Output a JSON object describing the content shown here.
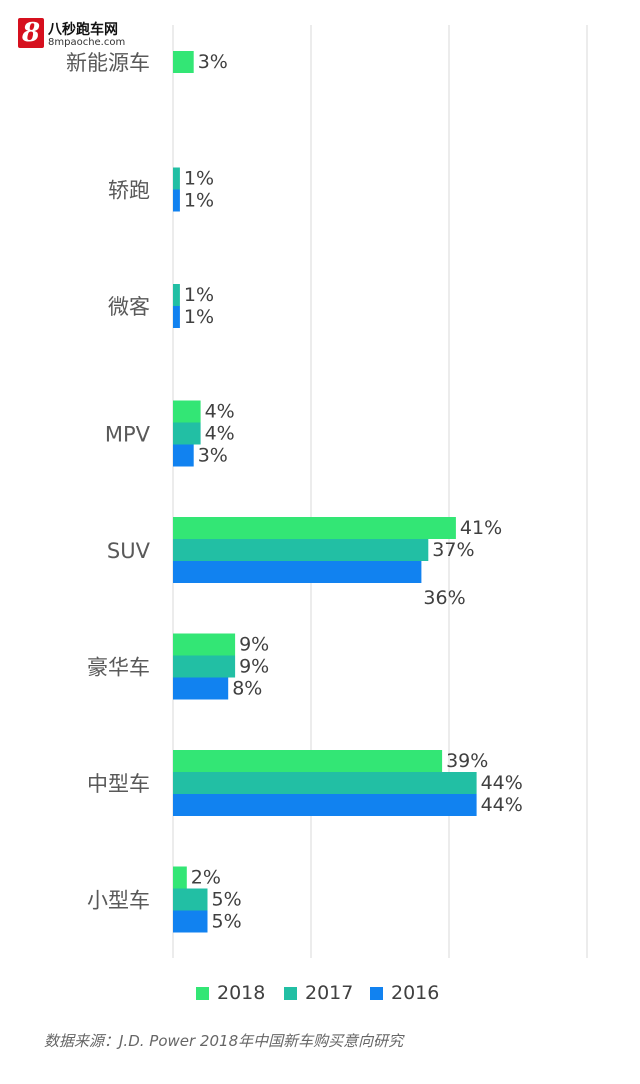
{
  "brand": {
    "logo_char": "8",
    "name": "八秒跑车网",
    "url": "8mpaoche.com"
  },
  "chart_data": {
    "type": "bar",
    "orientation": "horizontal",
    "categories": [
      "新能源车",
      "轿跑",
      "微客",
      "MPV",
      "SUV",
      "豪华车",
      "中型车",
      "小型车"
    ],
    "series": [
      {
        "name": "2018",
        "color": "#33e675",
        "values": [
          3,
          null,
          null,
          4,
          41,
          9,
          39,
          2
        ]
      },
      {
        "name": "2017",
        "color": "#22bfa4",
        "values": [
          null,
          1,
          1,
          4,
          37,
          9,
          44,
          5
        ]
      },
      {
        "name": "2016",
        "color": "#1182f0",
        "values": [
          null,
          1,
          1,
          3,
          36,
          8,
          44,
          5
        ]
      }
    ],
    "value_format": "{v}%",
    "xlim": [
      0,
      60
    ],
    "grid": true,
    "legend_position": "bottom",
    "title": "",
    "xlabel": "",
    "ylabel": ""
  },
  "source": "数据来源：J.D. Power 2018年中国新车购买意向研究"
}
